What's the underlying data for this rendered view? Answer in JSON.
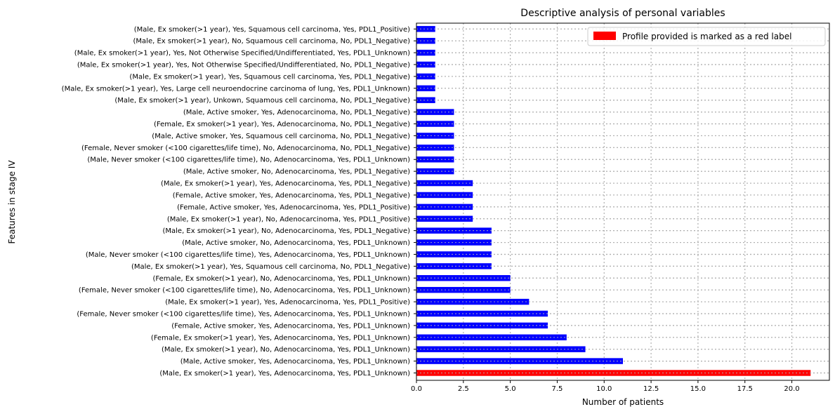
{
  "chart_data": {
    "type": "bar",
    "orientation": "horizontal",
    "title": "Descriptive analysis of personal variables",
    "xlabel": "Number of patients",
    "ylabel": "Features in stage IV",
    "xlim": [
      0,
      22
    ],
    "xticks": [
      "0.0",
      "2.5",
      "5.0",
      "7.5",
      "10.0",
      "12.5",
      "15.0",
      "17.5",
      "20.0"
    ],
    "grid": true,
    "legend": {
      "placement": "top-right",
      "label": "Profile provided is marked as a red label",
      "color": "#ff0000"
    },
    "bar_color": "#0000ff",
    "highlight_color": "#ff0000",
    "highlight_index": 0,
    "categories": [
      "(Male, Ex smoker(>1 year), Yes, Adenocarcinoma, Yes, PDL1_Unknown)",
      "(Male, Active smoker, Yes, Adenocarcinoma, Yes, PDL1_Unknown)",
      "(Male, Ex smoker(>1 year), No, Adenocarcinoma, Yes, PDL1_Unknown)",
      "(Female, Ex smoker(>1 year), Yes, Adenocarcinoma, Yes, PDL1_Unknown)",
      "(Female, Active smoker, Yes, Adenocarcinoma, Yes, PDL1_Unknown)",
      "(Female, Never smoker (<100 cigarettes/life time), Yes, Adenocarcinoma, Yes, PDL1_Unknown)",
      "(Male, Ex smoker(>1 year), Yes, Adenocarcinoma, Yes, PDL1_Positive)",
      "(Female, Never smoker (<100 cigarettes/life time), No, Adenocarcinoma, Yes, PDL1_Unknown)",
      "(Female, Ex smoker(>1 year), No, Adenocarcinoma, Yes, PDL1_Unknown)",
      "(Male, Ex smoker(>1 year), Yes, Squamous cell carcinoma, No, PDL1_Negative)",
      "(Male, Never smoker (<100 cigarettes/life time), Yes, Adenocarcinoma, Yes, PDL1_Unknown)",
      "(Male, Active smoker, No, Adenocarcinoma, Yes, PDL1_Unknown)",
      "(Male, Ex smoker(>1 year), No, Adenocarcinoma, Yes, PDL1_Negative)",
      "(Male, Ex smoker(>1 year), No, Adenocarcinoma, Yes, PDL1_Positive)",
      "(Female, Active smoker, Yes, Adenocarcinoma, Yes, PDL1_Positive)",
      "(Female, Active smoker, Yes, Adenocarcinoma, Yes, PDL1_Negative)",
      "(Male, Ex smoker(>1 year), Yes, Adenocarcinoma, Yes, PDL1_Negative)",
      "(Male, Active smoker, No, Adenocarcinoma, Yes, PDL1_Negative)",
      "(Male, Never smoker (<100 cigarettes/life time), No, Adenocarcinoma, Yes, PDL1_Unknown)",
      "(Female, Never smoker (<100 cigarettes/life time), No, Adenocarcinoma, No, PDL1_Negative)",
      "(Male, Active smoker, Yes, Squamous cell carcinoma, No, PDL1_Negative)",
      "(Female, Ex smoker(>1 year), Yes, Adenocarcinoma, No, PDL1_Negative)",
      "(Male, Active smoker, Yes, Adenocarcinoma, No, PDL1_Negative)",
      "(Male, Ex smoker(>1 year), Unkown, Squamous cell carcinoma, No, PDL1_Negative)",
      "(Male, Ex smoker(>1 year), Yes, Large cell neuroendocrine carcinoma of lung, Yes, PDL1_Unknown)",
      "(Male, Ex smoker(>1 year), Yes, Squamous cell carcinoma, Yes, PDL1_Negative)",
      "(Male, Ex smoker(>1 year), Yes, Not Otherwise Specified/Undifferentiated, No, PDL1_Negative)",
      "(Male, Ex smoker(>1 year), Yes, Not Otherwise Specified/Undifferentiated, Yes, PDL1_Unknown)",
      "(Male, Ex smoker(>1 year), No, Squamous cell carcinoma, No, PDL1_Negative)",
      "(Male, Ex smoker(>1 year), Yes, Squamous cell carcinoma, Yes, PDL1_Positive)"
    ],
    "values": [
      21,
      11,
      9,
      8,
      7,
      7,
      6,
      5,
      5,
      4,
      4,
      4,
      4,
      3,
      3,
      3,
      3,
      2,
      2,
      2,
      2,
      2,
      2,
      1,
      1,
      1,
      1,
      1,
      1,
      1
    ]
  }
}
